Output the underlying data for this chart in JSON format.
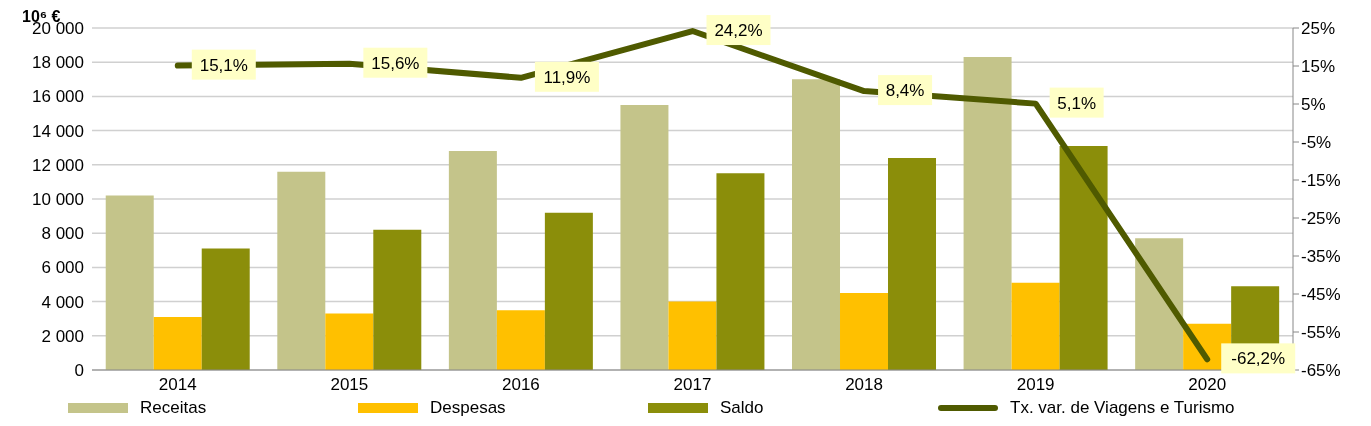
{
  "chart_data": {
    "type": "bar",
    "ylabel": "10⁶ €",
    "categories": [
      "2014",
      "2015",
      "2016",
      "2017",
      "2018",
      "2019",
      "2020"
    ],
    "series": [
      {
        "name": "Receitas",
        "color": "#c4c48a",
        "values": [
          10200,
          11600,
          12800,
          15500,
          17000,
          18300,
          7700
        ]
      },
      {
        "name": "Despesas",
        "color": "#ffc000",
        "values": [
          3100,
          3300,
          3500,
          4000,
          4500,
          5100,
          2700
        ]
      },
      {
        "name": "Saldo",
        "color": "#8b8e0a",
        "values": [
          7100,
          8200,
          9200,
          11500,
          12400,
          13100,
          4900
        ]
      },
      {
        "name": "Tx. var. de Viagens e Turismo",
        "type": "line",
        "axis": "y2",
        "color": "#4f5a00",
        "values": [
          15.1,
          15.6,
          11.9,
          24.2,
          8.4,
          5.1,
          -62.2
        ],
        "value_labels": [
          "15,1%",
          "15,6%",
          "11,9%",
          "24,2%",
          "8,4%",
          "5,1%",
          "-62,2%"
        ]
      }
    ],
    "ylim": [
      0,
      20000
    ],
    "yticks": [
      {
        "value": 0,
        "label": "0"
      },
      {
        "value": 2000,
        "label": "2 000"
      },
      {
        "value": 4000,
        "label": "4 000"
      },
      {
        "value": 6000,
        "label": "6 000"
      },
      {
        "value": 8000,
        "label": "8 000"
      },
      {
        "value": 10000,
        "label": "10 000"
      },
      {
        "value": 12000,
        "label": "12 000"
      },
      {
        "value": 14000,
        "label": "14 000"
      },
      {
        "value": 16000,
        "label": "16 000"
      },
      {
        "value": 18000,
        "label": "18 000"
      },
      {
        "value": 20000,
        "label": "20 000"
      }
    ],
    "y2lim": [
      -65,
      25
    ],
    "y2ticks": [
      {
        "value": -65,
        "label": "-65%"
      },
      {
        "value": -55,
        "label": "-55%"
      },
      {
        "value": -45,
        "label": "-45%"
      },
      {
        "value": -35,
        "label": "-35%"
      },
      {
        "value": -25,
        "label": "-25%"
      },
      {
        "value": -15,
        "label": "-15%"
      },
      {
        "value": -5,
        "label": "-5%"
      },
      {
        "value": 5,
        "label": "5%"
      },
      {
        "value": 15,
        "label": "15%"
      },
      {
        "value": 25,
        "label": "25%"
      }
    ],
    "grid": "y",
    "legend": "bottom",
    "marker": "none",
    "line_style": "solid"
  }
}
